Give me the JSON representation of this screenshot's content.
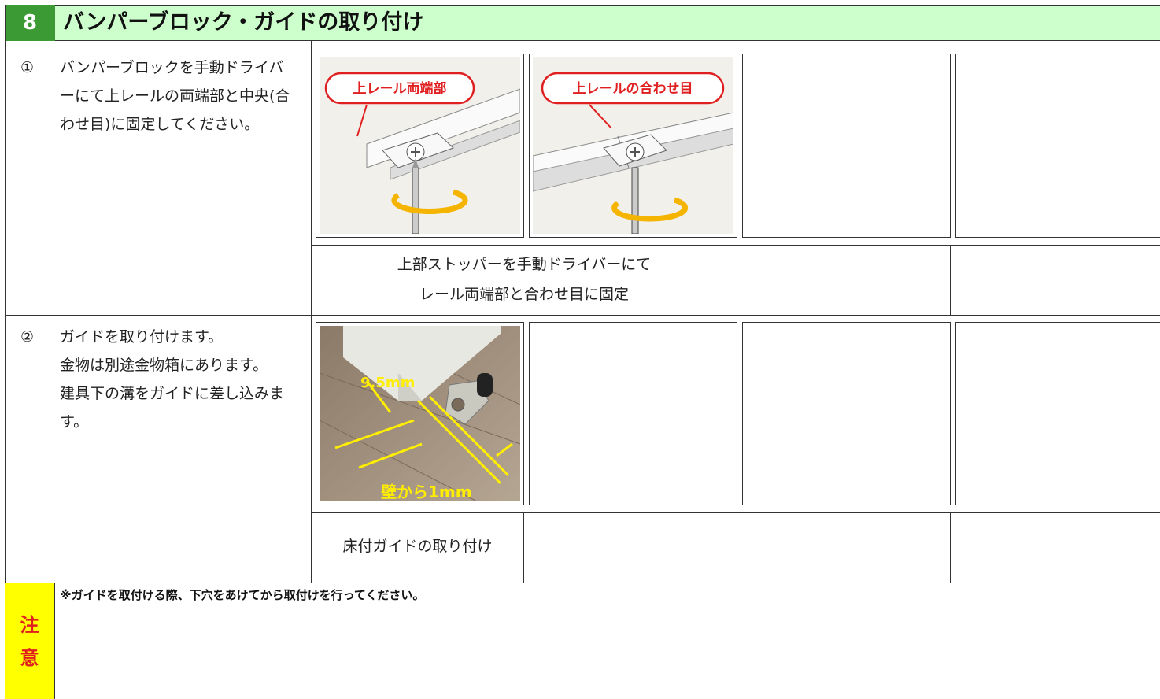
{
  "header": {
    "number": "8",
    "title": "バンパーブロック・ガイドの取り付け"
  },
  "steps": [
    {
      "marker": "①",
      "text": "バンパーブロックを手動ドライバーにて上レールの両端部と中央(合わせ目)に固定してください。",
      "images": [
        {
          "label": "上レール両端部"
        },
        {
          "label": "上レールの合わせ目"
        }
      ],
      "caption": [
        "上部ストッパーを手動ドライバーにて",
        "レール両端部と合わせ目に固定"
      ]
    },
    {
      "marker": "②",
      "text": "ガイドを取り付けます。\n金物は別途金物箱にあります。\n建具下の溝をガイドに差し込みます。",
      "images": [
        {
          "labels": [
            "9.5mm",
            "壁から1mm"
          ]
        }
      ],
      "caption": [
        "床付ガイドの取り付け"
      ]
    }
  ],
  "note": {
    "label": "注意",
    "text": "※ガイドを取付ける際、下穴をあけてから取付けを行ってください。"
  }
}
